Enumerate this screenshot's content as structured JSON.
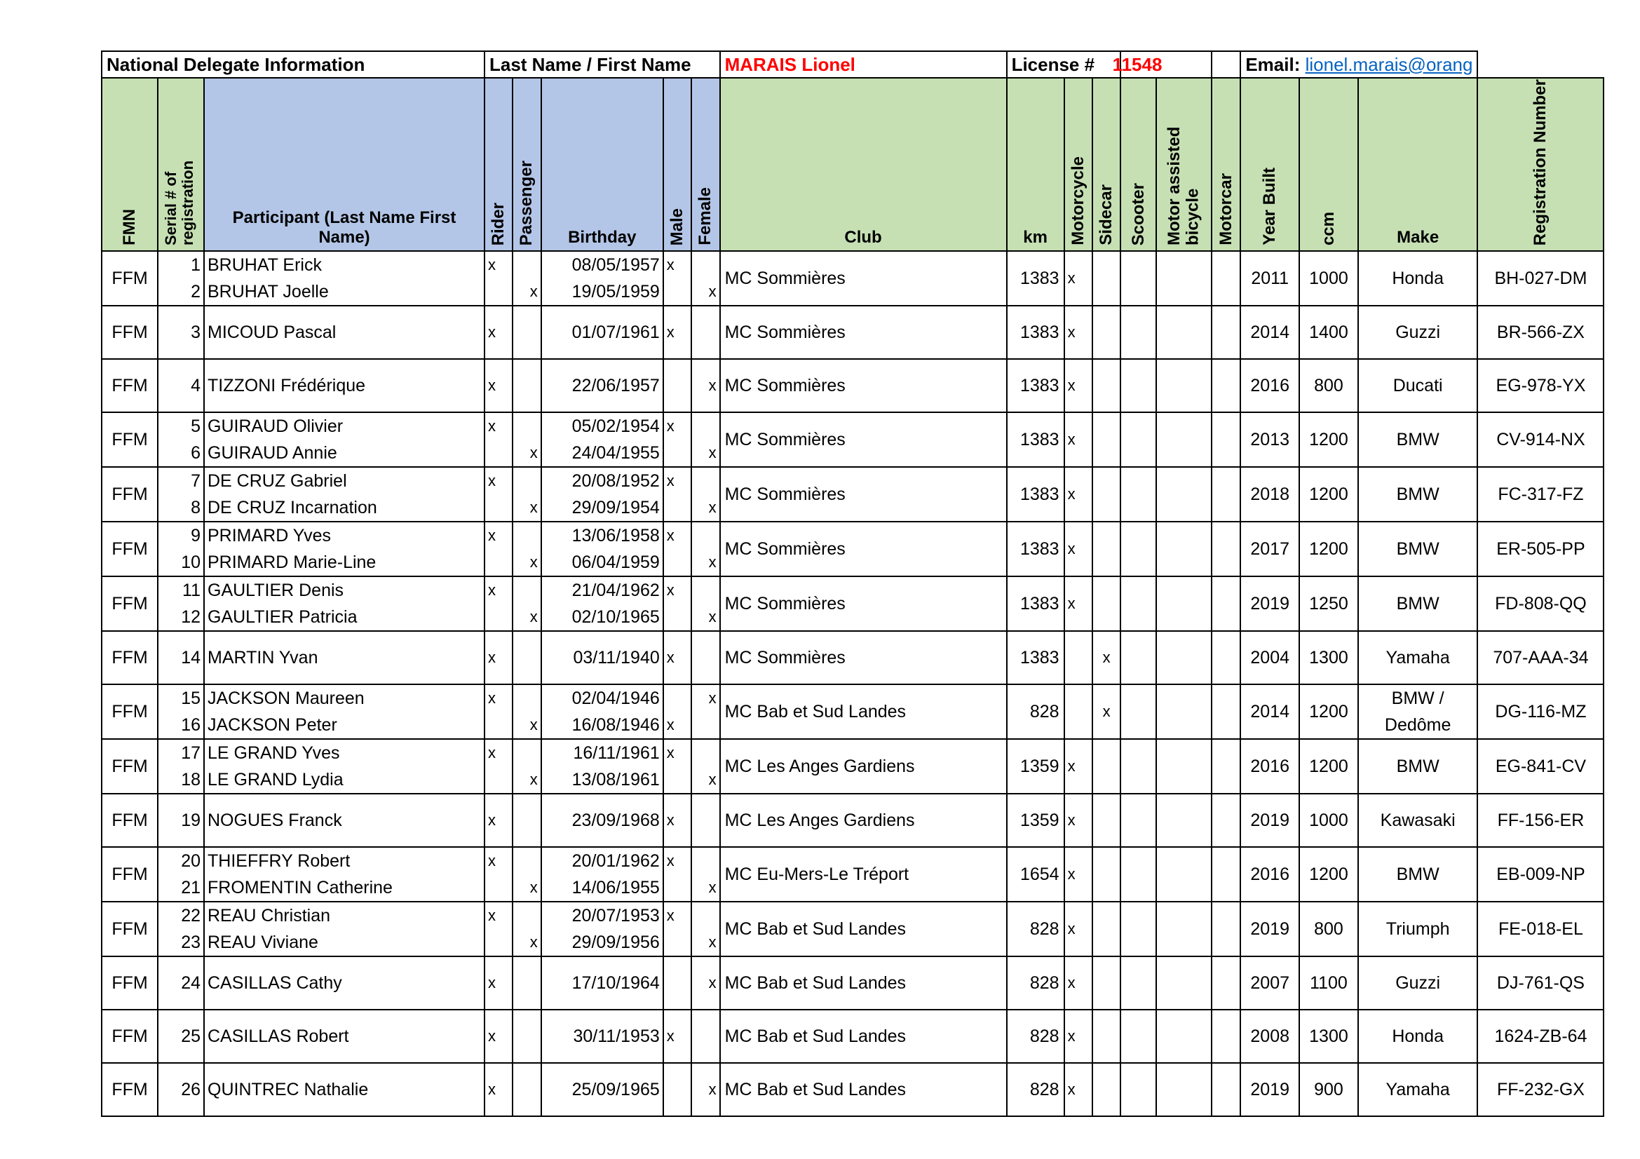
{
  "header": {
    "section_label": "National Delegate Information",
    "name_label": "Last Name / First Name",
    "name_value": "MARAIS Lionel",
    "license_label": "License #",
    "license_value": "11548",
    "email_label": "Email:",
    "email_value": "lionel.marais@orang"
  },
  "columns": {
    "fmn": "FMN",
    "serial": "Serial # of registration",
    "participant": "Participant (Last Name First Name)",
    "rider": "Rider",
    "passenger": "Passenger",
    "birthday": "Birthday",
    "male": "Male",
    "female": "Female",
    "club": "Club",
    "km": "km",
    "motorcycle": "Motorcycle",
    "sidecar": "Sidecar",
    "scooter": "Scooter",
    "motor_assisted": "Motor assisted bicycle",
    "motorcar": "Motorcar",
    "year_built": "Year Built",
    "ccm": "ccm",
    "make": "Make",
    "registration": "Registration Number"
  },
  "rows": [
    {
      "fmn": "FFM",
      "club": "MC Sommières",
      "km": "1383",
      "motorcycle": "x",
      "sidecar": "",
      "year": "2011",
      "ccm": "1000",
      "make": "Honda",
      "reg": "BH-027-DM",
      "people": [
        {
          "serial": "1",
          "name": "BRUHAT Erick",
          "rider": "x",
          "passenger": "",
          "birthday": "08/05/1957",
          "male": "x",
          "female": ""
        },
        {
          "serial": "2",
          "name": "BRUHAT Joelle",
          "rider": "",
          "passenger": "x",
          "birthday": "19/05/1959",
          "male": "",
          "female": "x"
        }
      ]
    },
    {
      "fmn": "FFM",
      "club": "MC Sommières",
      "km": "1383",
      "motorcycle": "x",
      "sidecar": "",
      "year": "2014",
      "ccm": "1400",
      "make": "Guzzi",
      "reg": "BR-566-ZX",
      "people": [
        {
          "serial": "3",
          "name": "MICOUD Pascal",
          "rider": "x",
          "passenger": "",
          "birthday": "01/07/1961",
          "male": "x",
          "female": ""
        }
      ]
    },
    {
      "fmn": "FFM",
      "club": "MC Sommières",
      "km": "1383",
      "motorcycle": "x",
      "sidecar": "",
      "year": "2016",
      "ccm": "800",
      "make": "Ducati",
      "reg": "EG-978-YX",
      "people": [
        {
          "serial": "4",
          "name": "TIZZONI Frédérique",
          "rider": "x",
          "passenger": "",
          "birthday": "22/06/1957",
          "male": "",
          "female": "x"
        }
      ]
    },
    {
      "fmn": "FFM",
      "club": "MC Sommières",
      "km": "1383",
      "motorcycle": "x",
      "sidecar": "",
      "year": "2013",
      "ccm": "1200",
      "make": "BMW",
      "reg": "CV-914-NX",
      "people": [
        {
          "serial": "5",
          "name": "GUIRAUD Olivier",
          "rider": "x",
          "passenger": "",
          "birthday": "05/02/1954",
          "male": "x",
          "female": ""
        },
        {
          "serial": "6",
          "name": "GUIRAUD Annie",
          "rider": "",
          "passenger": "x",
          "birthday": "24/04/1955",
          "male": "",
          "female": "x"
        }
      ]
    },
    {
      "fmn": "FFM",
      "club": "MC Sommières",
      "km": "1383",
      "motorcycle": "x",
      "sidecar": "",
      "year": "2018",
      "ccm": "1200",
      "make": "BMW",
      "reg": "FC-317-FZ",
      "people": [
        {
          "serial": "7",
          "name": "DE CRUZ Gabriel",
          "rider": "x",
          "passenger": "",
          "birthday": "20/08/1952",
          "male": "x",
          "female": ""
        },
        {
          "serial": "8",
          "name": "DE CRUZ Incarnation",
          "rider": "",
          "passenger": "x",
          "birthday": "29/09/1954",
          "male": "",
          "female": "x"
        }
      ]
    },
    {
      "fmn": "FFM",
      "club": "MC Sommières",
      "km": "1383",
      "motorcycle": "x",
      "sidecar": "",
      "year": "2017",
      "ccm": "1200",
      "make": "BMW",
      "reg": "ER-505-PP",
      "people": [
        {
          "serial": "9",
          "name": "PRIMARD Yves",
          "rider": "x",
          "passenger": "",
          "birthday": "13/06/1958",
          "male": "x",
          "female": ""
        },
        {
          "serial": "10",
          "name": "PRIMARD Marie-Line",
          "rider": "",
          "passenger": "x",
          "birthday": "06/04/1959",
          "male": "",
          "female": "x"
        }
      ]
    },
    {
      "fmn": "FFM",
      "club": "MC Sommières",
      "km": "1383",
      "motorcycle": "x",
      "sidecar": "",
      "year": "2019",
      "ccm": "1250",
      "make": "BMW",
      "reg": "FD-808-QQ",
      "people": [
        {
          "serial": "11",
          "name": "GAULTIER Denis",
          "rider": "x",
          "passenger": "",
          "birthday": "21/04/1962",
          "male": "x",
          "female": ""
        },
        {
          "serial": "12",
          "name": "GAULTIER Patricia",
          "rider": "",
          "passenger": "x",
          "birthday": "02/10/1965",
          "male": "",
          "female": "x"
        }
      ]
    },
    {
      "fmn": "FFM",
      "club": "MC Sommières",
      "km": "1383",
      "motorcycle": "",
      "sidecar": "x",
      "year": "2004",
      "ccm": "1300",
      "make": "Yamaha",
      "reg": "707-AAA-34",
      "people": [
        {
          "serial": "14",
          "name": "MARTIN Yvan",
          "rider": "x",
          "passenger": "",
          "birthday": "03/11/1940",
          "male": "x",
          "female": ""
        }
      ]
    },
    {
      "fmn": "FFM",
      "club": "MC Bab et Sud Landes",
      "km": "828",
      "motorcycle": "",
      "sidecar": "x",
      "year": "2014",
      "ccm": "1200",
      "make": "BMW / Dedôme",
      "reg": "DG-116-MZ",
      "people": [
        {
          "serial": "15",
          "name": "JACKSON Maureen",
          "rider": "x",
          "passenger": "",
          "birthday": "02/04/1946",
          "male": "",
          "female": "x"
        },
        {
          "serial": "16",
          "name": "JACKSON Peter",
          "rider": "",
          "passenger": "x",
          "birthday": "16/08/1946",
          "male": "x",
          "female": ""
        }
      ]
    },
    {
      "fmn": "FFM",
      "club": "MC Les Anges Gardiens",
      "km": "1359",
      "motorcycle": "x",
      "sidecar": "",
      "year": "2016",
      "ccm": "1200",
      "make": "BMW",
      "reg": "EG-841-CV",
      "people": [
        {
          "serial": "17",
          "name": "LE GRAND Yves",
          "rider": "x",
          "passenger": "",
          "birthday": "16/11/1961",
          "male": "x",
          "female": ""
        },
        {
          "serial": "18",
          "name": "LE GRAND Lydia",
          "rider": "",
          "passenger": "x",
          "birthday": "13/08/1961",
          "male": "",
          "female": "x"
        }
      ]
    },
    {
      "fmn": "FFM",
      "club": "MC Les Anges Gardiens",
      "km": "1359",
      "motorcycle": "x",
      "sidecar": "",
      "year": "2019",
      "ccm": "1000",
      "make": "Kawasaki",
      "reg": "FF-156-ER",
      "people": [
        {
          "serial": "19",
          "name": "NOGUES Franck",
          "rider": "x",
          "passenger": "",
          "birthday": "23/09/1968",
          "male": "x",
          "female": ""
        }
      ]
    },
    {
      "fmn": "FFM",
      "club": "MC Eu-Mers-Le Tréport",
      "km": "1654",
      "motorcycle": "x",
      "sidecar": "",
      "year": "2016",
      "ccm": "1200",
      "make": "BMW",
      "reg": "EB-009-NP",
      "people": [
        {
          "serial": "20",
          "name": "THIEFFRY Robert",
          "rider": "x",
          "passenger": "",
          "birthday": "20/01/1962",
          "male": "x",
          "female": ""
        },
        {
          "serial": "21",
          "name": "FROMENTIN Catherine",
          "rider": "",
          "passenger": "x",
          "birthday": "14/06/1955",
          "male": "",
          "female": "x"
        }
      ]
    },
    {
      "fmn": "FFM",
      "club": "MC Bab et Sud Landes",
      "km": "828",
      "motorcycle": "x",
      "sidecar": "",
      "year": "2019",
      "ccm": "800",
      "make": "Triumph",
      "reg": "FE-018-EL",
      "people": [
        {
          "serial": "22",
          "name": "REAU Christian",
          "rider": "x",
          "passenger": "",
          "birthday": "20/07/1953",
          "male": "x",
          "female": ""
        },
        {
          "serial": "23",
          "name": "REAU Viviane",
          "rider": "",
          "passenger": "x",
          "birthday": "29/09/1956",
          "male": "",
          "female": "x"
        }
      ]
    },
    {
      "fmn": "FFM",
      "club": "MC Bab et Sud Landes",
      "km": "828",
      "motorcycle": "x",
      "sidecar": "",
      "year": "2007",
      "ccm": "1100",
      "make": "Guzzi",
      "reg": "DJ-761-QS",
      "people": [
        {
          "serial": "24",
          "name": "CASILLAS Cathy",
          "rider": "x",
          "passenger": "",
          "birthday": "17/10/1964",
          "male": "",
          "female": "x"
        }
      ]
    },
    {
      "fmn": "FFM",
      "club": "MC Bab et Sud Landes",
      "km": "828",
      "motorcycle": "x",
      "sidecar": "",
      "year": "2008",
      "ccm": "1300",
      "make": "Honda",
      "reg": "1624-ZB-64",
      "people": [
        {
          "serial": "25",
          "name": "CASILLAS Robert",
          "rider": "x",
          "passenger": "",
          "birthday": "30/11/1953",
          "male": "x",
          "female": ""
        }
      ]
    },
    {
      "fmn": "FFM",
      "club": "MC Bab et Sud Landes",
      "km": "828",
      "motorcycle": "x",
      "sidecar": "",
      "year": "2019",
      "ccm": "900",
      "make": "Yamaha",
      "reg": "FF-232-GX",
      "people": [
        {
          "serial": "26",
          "name": "QUINTREC Nathalie",
          "rider": "x",
          "passenger": "",
          "birthday": "25/09/1965",
          "male": "",
          "female": "x"
        }
      ]
    }
  ]
}
